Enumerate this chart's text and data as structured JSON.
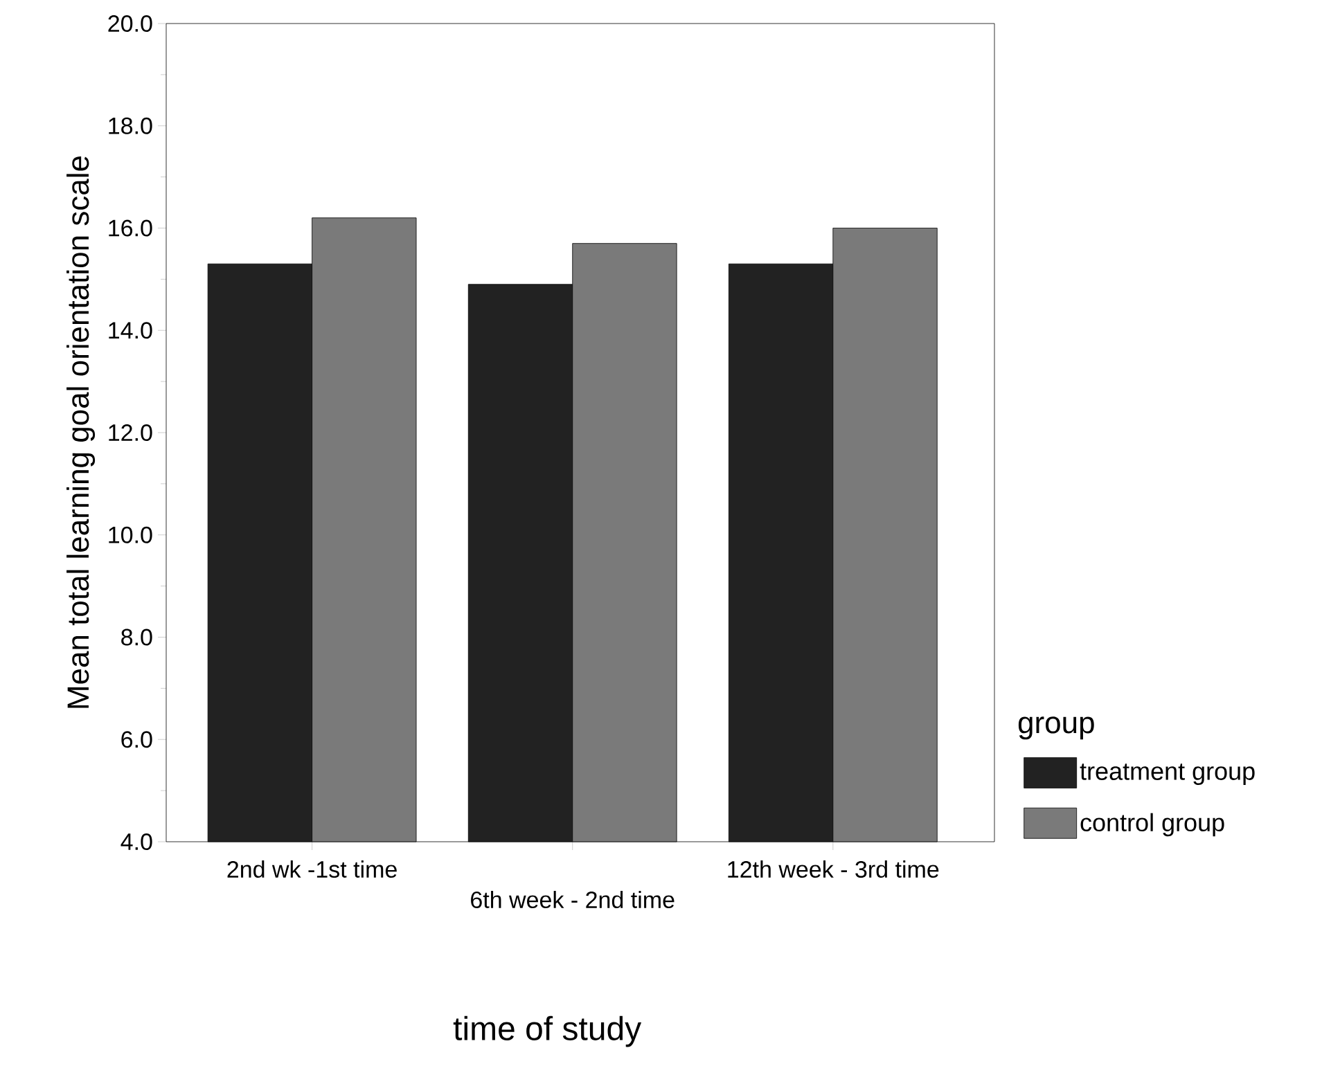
{
  "chart_data": {
    "type": "bar",
    "xlabel": "time of study",
    "ylabel": "Mean total learning goal orientation scale",
    "legend_title": "group",
    "categories": [
      "2nd wk -1st time",
      "6th week - 2nd time",
      "12th week - 3rd time"
    ],
    "series": [
      {
        "name": "treatment group",
        "color": "#222222",
        "values": [
          15.3,
          14.9,
          15.3
        ]
      },
      {
        "name": "control group",
        "color": "#7a7a7a",
        "values": [
          16.2,
          15.7,
          16.0
        ]
      }
    ],
    "ylim": [
      4,
      20
    ],
    "yticks": [
      {
        "value": 4,
        "label": "4.0"
      },
      {
        "value": 6,
        "label": "6.0"
      },
      {
        "value": 8,
        "label": "8.0"
      },
      {
        "value": 10,
        "label": "10.0"
      },
      {
        "value": 12,
        "label": "12.0"
      },
      {
        "value": 14,
        "label": "14.0"
      },
      {
        "value": 16,
        "label": "16.0"
      },
      {
        "value": 18,
        "label": "18.0"
      },
      {
        "value": 20,
        "label": "20.0"
      }
    ],
    "grid": false,
    "legend": "bottom right"
  }
}
